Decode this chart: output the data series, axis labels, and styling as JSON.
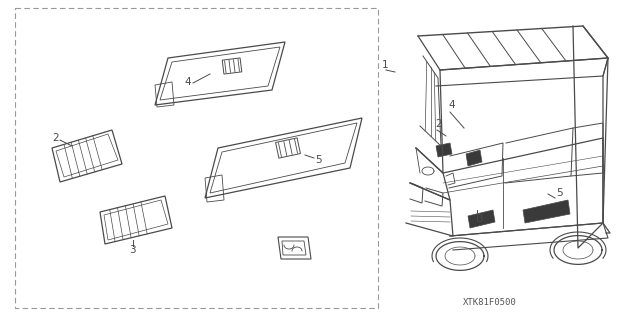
{
  "part_code": "XTK81F0500",
  "background_color": "#ffffff",
  "line_color": "#4a4a4a",
  "dash_color": "#999999",
  "figsize": [
    6.4,
    3.19
  ],
  "dpi": 100
}
